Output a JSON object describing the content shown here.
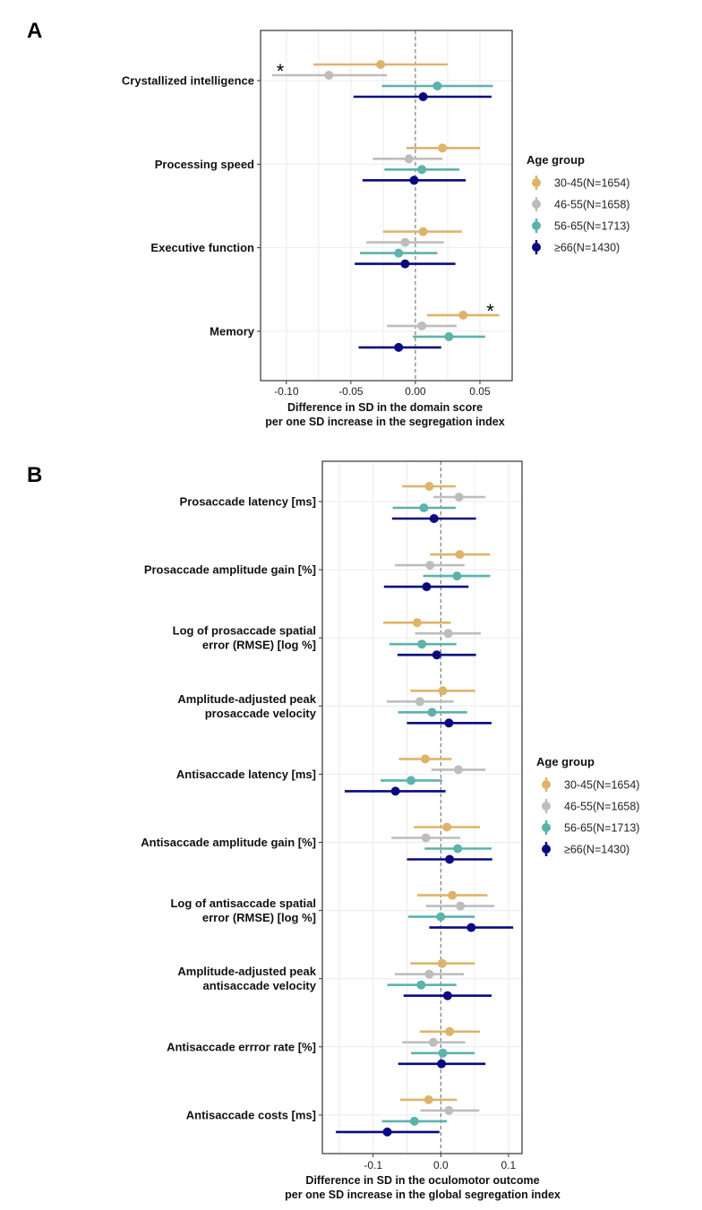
{
  "chart_data": [
    {
      "type": "forest",
      "panel_label": "A",
      "xlabel_line1": "Difference in SD in the domain score",
      "xlabel_line2": "per one SD increase in the segregation index",
      "xlim": [
        -0.12,
        0.075
      ],
      "xticks": [
        -0.1,
        -0.05,
        0.0,
        0.05
      ],
      "xtick_labels": [
        "-0.10",
        "-0.05",
        "0.00",
        "0.05"
      ],
      "reference_line": 0,
      "categories": [
        "Crystallized intelligence",
        "Processing speed",
        "Executive function",
        "Memory"
      ],
      "legend_title": "Age group",
      "series": [
        {
          "name": "30-45(N=1654)",
          "color": "#DDB46A",
          "estimates": [
            -0.027,
            0.021,
            0.006,
            0.037
          ],
          "lower": [
            -0.079,
            -0.007,
            -0.025,
            0.009
          ],
          "upper": [
            0.025,
            0.05,
            0.036,
            0.065
          ]
        },
        {
          "name": "46-55(N=1658)",
          "color": "#BDBDBD",
          "estimates": [
            -0.067,
            -0.005,
            -0.008,
            0.005
          ],
          "lower": [
            -0.111,
            -0.033,
            -0.038,
            -0.022
          ],
          "upper": [
            -0.022,
            0.021,
            0.022,
            0.032
          ]
        },
        {
          "name": "56-65(N=1713)",
          "color": "#5BB3AC",
          "estimates": [
            0.017,
            0.005,
            -0.013,
            0.026
          ],
          "lower": [
            -0.026,
            -0.024,
            -0.043,
            -0.002
          ],
          "upper": [
            0.06,
            0.034,
            0.017,
            0.054
          ]
        },
        {
          "name": "≥66(N=1430)",
          "color": "#0A0A80",
          "estimates": [
            0.006,
            -0.001,
            -0.008,
            -0.013
          ],
          "lower": [
            -0.048,
            -0.041,
            -0.047,
            -0.044
          ],
          "upper": [
            0.059,
            0.039,
            0.031,
            0.02
          ]
        }
      ],
      "annotations": [
        {
          "text": "*",
          "category": "Crystallized intelligence",
          "series": "46-55(N=1658)",
          "position": "left"
        },
        {
          "text": "*",
          "category": "Memory",
          "series": "30-45(N=1654)",
          "position": "right"
        }
      ]
    },
    {
      "type": "forest",
      "panel_label": "B",
      "xlabel_line1": "Difference in SD in the oculomotor outcome",
      "xlabel_line2": "per one SD increase in the global segregation index",
      "xlim": [
        -0.175,
        0.12
      ],
      "xticks": [
        -0.1,
        0.0,
        0.1
      ],
      "xtick_labels": [
        "-0.1",
        "0.0",
        "0.1"
      ],
      "reference_line": 0,
      "categories": [
        [
          "Prosaccade latency [ms]"
        ],
        [
          "Prosaccade amplitude gain [%]"
        ],
        [
          "Log of prosaccade spatial",
          "error (RMSE) [log %]"
        ],
        [
          "Amplitude-adjusted peak",
          "prosaccade velocity"
        ],
        [
          "Antisaccade latency [ms]"
        ],
        [
          "Antisaccade amplitude gain [%]"
        ],
        [
          "Log of antisaccade spatial",
          "error (RMSE) [log %]"
        ],
        [
          "Amplitude-adjusted peak",
          "antisaccade velocity"
        ],
        [
          "Antisaccade errror rate [%]"
        ],
        [
          "Antisaccade costs [ms]"
        ]
      ],
      "legend_title": "Age group",
      "series": [
        {
          "name": "30-45(N=1654)",
          "color": "#DDB46A",
          "estimates": [
            -0.017,
            0.028,
            -0.035,
            0.003,
            -0.023,
            0.009,
            0.017,
            0.002,
            0.013,
            -0.018
          ],
          "lower": [
            -0.057,
            -0.016,
            -0.085,
            -0.045,
            -0.062,
            -0.04,
            -0.035,
            -0.045,
            -0.031,
            -0.06
          ],
          "upper": [
            0.022,
            0.073,
            0.015,
            0.051,
            0.016,
            0.058,
            0.069,
            0.05,
            0.058,
            0.024
          ]
        },
        {
          "name": "46-55(N=1658)",
          "color": "#BDBDBD",
          "estimates": [
            0.027,
            -0.016,
            0.011,
            -0.031,
            0.026,
            -0.022,
            0.029,
            -0.017,
            -0.011,
            0.012
          ],
          "lower": [
            -0.011,
            -0.068,
            -0.038,
            -0.08,
            -0.014,
            -0.073,
            -0.022,
            -0.068,
            -0.057,
            -0.03
          ],
          "upper": [
            0.066,
            0.035,
            0.059,
            0.019,
            0.066,
            0.029,
            0.079,
            0.034,
            0.036,
            0.057
          ]
        },
        {
          "name": "56-65(N=1713)",
          "color": "#5BB3AC",
          "estimates": [
            -0.025,
            0.024,
            -0.028,
            -0.013,
            -0.044,
            0.025,
            0.0,
            -0.029,
            0.003,
            -0.039
          ],
          "lower": [
            -0.071,
            -0.026,
            -0.076,
            -0.063,
            -0.089,
            -0.024,
            -0.048,
            -0.079,
            -0.044,
            -0.087
          ],
          "upper": [
            0.022,
            0.073,
            0.023,
            0.039,
            0.002,
            0.075,
            0.05,
            0.023,
            0.05,
            0.009
          ]
        },
        {
          "name": "≥66(N=1430)",
          "color": "#0A0A80",
          "estimates": [
            -0.01,
            -0.021,
            -0.006,
            0.012,
            -0.067,
            0.013,
            0.045,
            0.01,
            0.001,
            -0.079
          ],
          "lower": [
            -0.072,
            -0.084,
            -0.064,
            -0.05,
            -0.142,
            -0.05,
            -0.017,
            -0.055,
            -0.063,
            -0.155
          ],
          "upper": [
            0.052,
            0.041,
            0.052,
            0.075,
            0.007,
            0.076,
            0.107,
            0.075,
            0.066,
            -0.002
          ]
        }
      ]
    }
  ]
}
